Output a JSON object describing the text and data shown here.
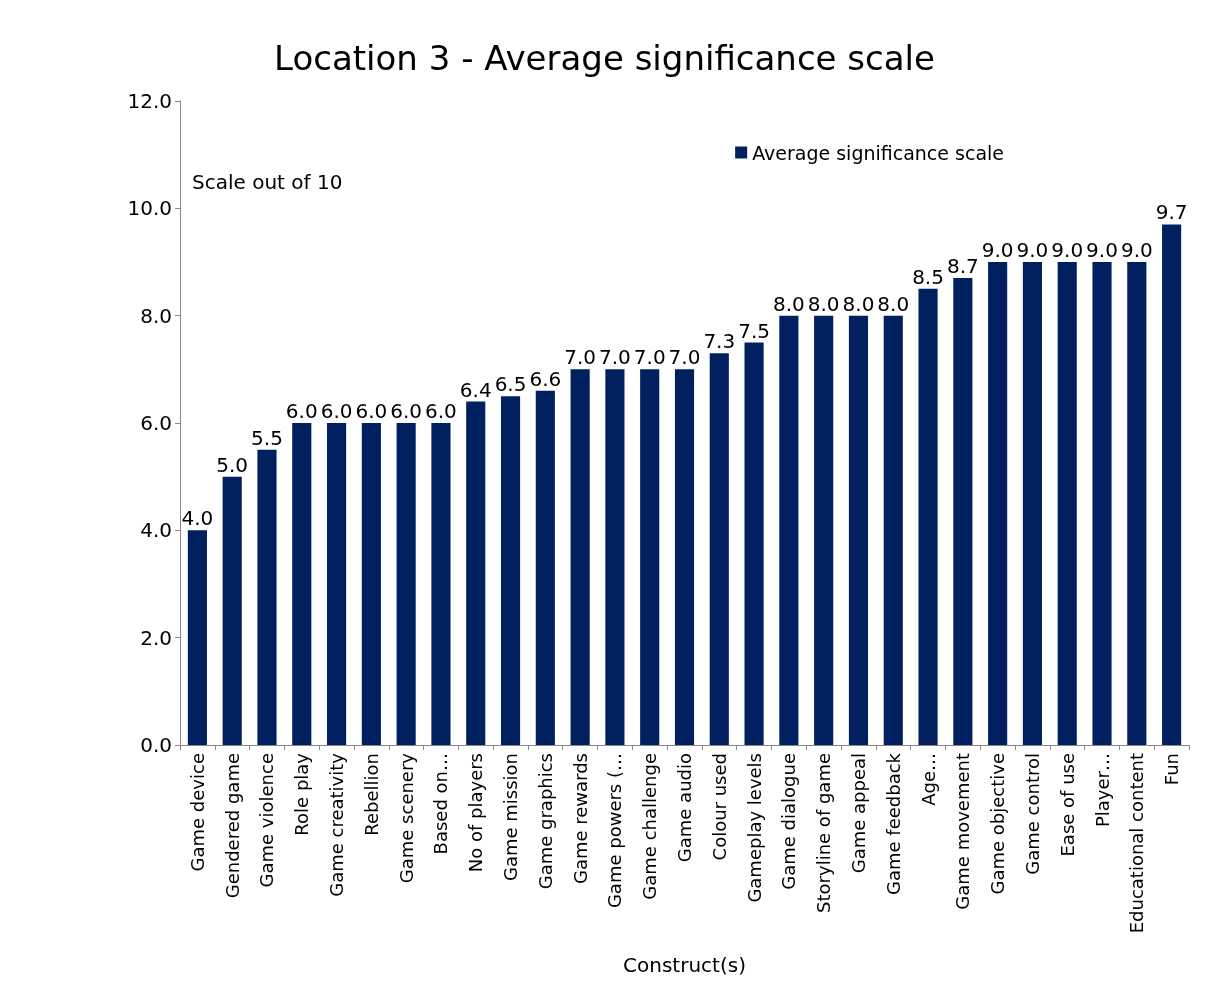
{
  "chart_data": {
    "type": "bar",
    "title": "Location 3 - Average significance scale",
    "xlabel": "Construct(s)",
    "categories": [
      "Game device",
      "Gendered game",
      "Game violence",
      "Role play",
      "Game creativity",
      "Rebellion",
      "Game scenery",
      "Based on…",
      "No of players",
      "Game mission",
      "Game graphics",
      "Game rewards",
      "Game powers (…",
      "Game challenge",
      "Game audio",
      "Colour used",
      "Gameplay levels",
      "Game dialogue",
      "Storyline of game",
      "Game appeal",
      "Game feedback",
      "Age…",
      "Game movement",
      "Game objective",
      "Game control",
      "Ease of use",
      "Player…",
      "Educational content",
      "Fun"
    ],
    "series": [
      {
        "name": "Average significance scale",
        "color": "#002060",
        "values": [
          4.0,
          5.0,
          5.5,
          6.0,
          6.0,
          6.0,
          6.0,
          6.0,
          6.4,
          6.5,
          6.6,
          7.0,
          7.0,
          7.0,
          7.0,
          7.3,
          7.5,
          8.0,
          8.0,
          8.0,
          8.0,
          8.5,
          8.7,
          9.0,
          9.0,
          9.0,
          9.0,
          9.0,
          9.7
        ],
        "value_labels": [
          "4.0",
          "5.0",
          "5.5",
          "6.0",
          "6.0",
          "6.0",
          "6.0",
          "6.0",
          "6.4",
          "6.5",
          "6.6",
          "7.0",
          "7.0",
          "7.0",
          "7.0",
          "7.3",
          "7.5",
          "8.0",
          "8.0",
          "8.0",
          "8.0",
          "8.5",
          "8.7",
          "9.0",
          "9.0",
          "9.0",
          "9.0",
          "9.0",
          "9.7"
        ]
      }
    ],
    "ylim": [
      0,
      12
    ],
    "yticks": [
      {
        "value": 0,
        "label": "0.0"
      },
      {
        "value": 2,
        "label": "2.0"
      },
      {
        "value": 4,
        "label": "4.0"
      },
      {
        "value": 6,
        "label": "6.0"
      },
      {
        "value": 8,
        "label": "8.0"
      },
      {
        "value": 10,
        "label": "10.0"
      },
      {
        "value": 12,
        "label": "12.0"
      }
    ],
    "annotations": [
      "Scale out of 10"
    ],
    "legend": "top right",
    "grid": false
  }
}
